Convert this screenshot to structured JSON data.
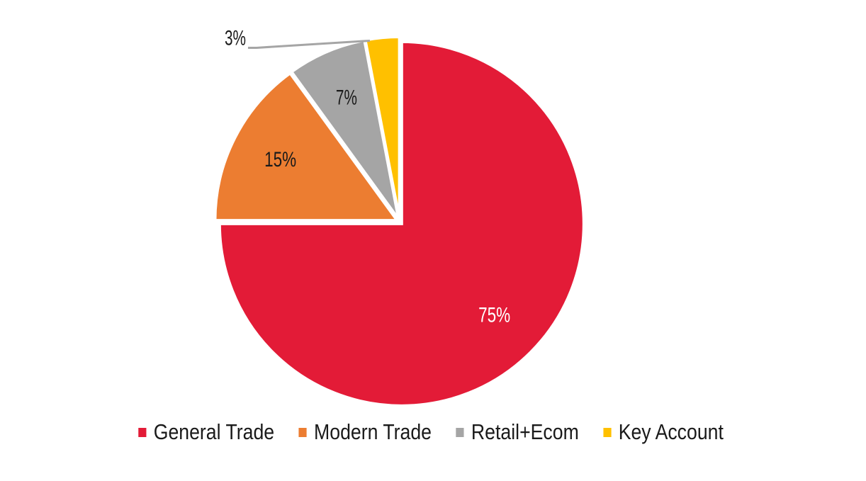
{
  "chart_data": {
    "type": "pie",
    "slices": [
      {
        "label": "General Trade",
        "value": 75,
        "display": "75%",
        "color": "#E31B37"
      },
      {
        "label": "Modern Trade",
        "value": 15,
        "display": "15%",
        "color": "#EC7D31"
      },
      {
        "label": "Retail+Ecom",
        "value": 7,
        "display": "7%",
        "color": "#A5A5A5"
      },
      {
        "label": "Key Account",
        "value": 3,
        "display": "3%",
        "color": "#FFC000"
      }
    ],
    "start_angle_deg": 0,
    "direction": "clockwise",
    "legend_position": "bottom"
  }
}
